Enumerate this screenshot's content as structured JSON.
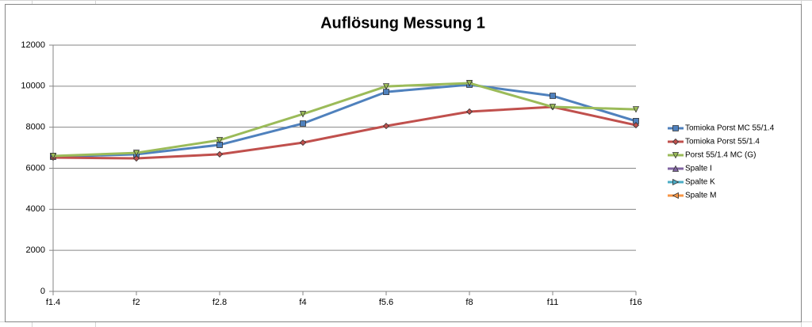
{
  "chart_data": {
    "type": "line",
    "title": "Auflösung Messung 1",
    "categories": [
      "f1.4",
      "f2",
      "f2.8",
      "f4",
      "f5.6",
      "f8",
      "f11",
      "f16"
    ],
    "series": [
      {
        "name": "Tomioka Porst MC 55/1.4",
        "color": "#4f81bd",
        "marker": "square",
        "values": [
          6560,
          6680,
          7140,
          8180,
          9720,
          10070,
          9530,
          8300
        ]
      },
      {
        "name": "Tomioka Porst 55/1.4",
        "color": "#c0504d",
        "marker": "diamond",
        "values": [
          6520,
          6480,
          6680,
          7250,
          8060,
          8760,
          8990,
          8100
        ]
      },
      {
        "name": "Porst 55/1.4 MC (G)",
        "color": "#9bbb59",
        "marker": "triangle-down",
        "values": [
          6600,
          6750,
          7370,
          8640,
          9990,
          10150,
          8990,
          8870
        ]
      },
      {
        "name": "Spalte I",
        "color": "#8064a2",
        "marker": "triangle-up",
        "values": [
          null,
          null,
          null,
          null,
          null,
          null,
          null,
          null
        ]
      },
      {
        "name": "Spalte K",
        "color": "#4bacc6",
        "marker": "triangle-right",
        "values": [
          null,
          null,
          null,
          null,
          null,
          null,
          null,
          null
        ]
      },
      {
        "name": "Spalte M",
        "color": "#f79646",
        "marker": "triangle-left",
        "values": [
          null,
          null,
          null,
          null,
          null,
          null,
          null,
          null
        ]
      }
    ],
    "ylim": [
      0,
      12000
    ],
    "yticks": [
      0,
      2000,
      4000,
      6000,
      8000,
      10000,
      12000
    ],
    "grid": true,
    "legend": "right"
  }
}
